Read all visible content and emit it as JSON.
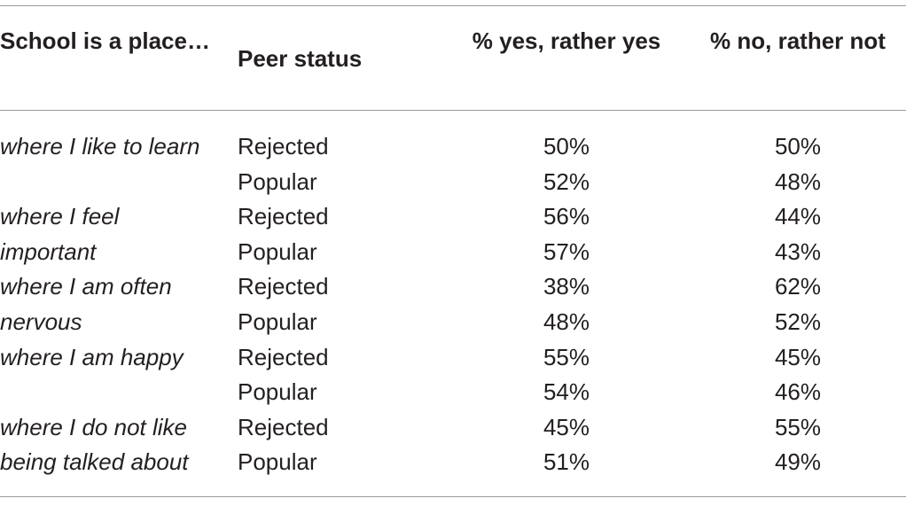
{
  "table": {
    "headers": {
      "item": "School is a place…",
      "status": "Peer status",
      "yes": "% yes, rather yes",
      "no": "% no, rather not"
    },
    "rows": [
      {
        "item": "where I like to learn",
        "status": "Rejected",
        "yes": "50%",
        "no": "50%"
      },
      {
        "item": "",
        "status": "Popular",
        "yes": "52%",
        "no": "48%"
      },
      {
        "item": "where I feel",
        "status": "Rejected",
        "yes": "56%",
        "no": "44%"
      },
      {
        "item": "important",
        "status": "Popular",
        "yes": "57%",
        "no": "43%"
      },
      {
        "item": "where I am often",
        "status": "Rejected",
        "yes": "38%",
        "no": "62%"
      },
      {
        "item": "nervous",
        "status": "Popular",
        "yes": "48%",
        "no": "52%"
      },
      {
        "item": "where I am happy",
        "status": "Rejected",
        "yes": "55%",
        "no": "45%"
      },
      {
        "item": "",
        "status": "Popular",
        "yes": "54%",
        "no": "46%"
      },
      {
        "item": "where I do not like",
        "status": "Rejected",
        "yes": "45%",
        "no": "55%"
      },
      {
        "item": "being talked about",
        "status": "Popular",
        "yes": "51%",
        "no": "49%"
      }
    ]
  }
}
